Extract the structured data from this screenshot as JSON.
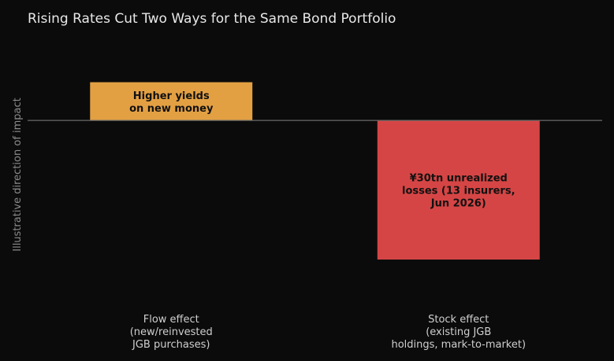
{
  "chart_data": {
    "type": "bar",
    "title": "Rising Rates Cut Two Ways for the Same Bond Portfolio",
    "xlabel": "",
    "ylabel": "Illustrative direction of impact",
    "ylim": [
      -1.2,
      0.7
    ],
    "grid": false,
    "categories": [
      [
        "Flow effect",
        "(new/reinvested",
        "JGB purchases)"
      ],
      [
        "Stock effect",
        "(existing JGB",
        "holdings, mark-to-market)"
      ]
    ],
    "values": [
      0.33,
      -1.2
    ],
    "bar_labels": [
      [
        "Higher yields",
        "on new money"
      ],
      [
        "¥30tn unrealized",
        "losses (13 insurers,",
        "Jun 2026)"
      ]
    ],
    "colors": [
      "#e3a043",
      "#d64545"
    ]
  }
}
